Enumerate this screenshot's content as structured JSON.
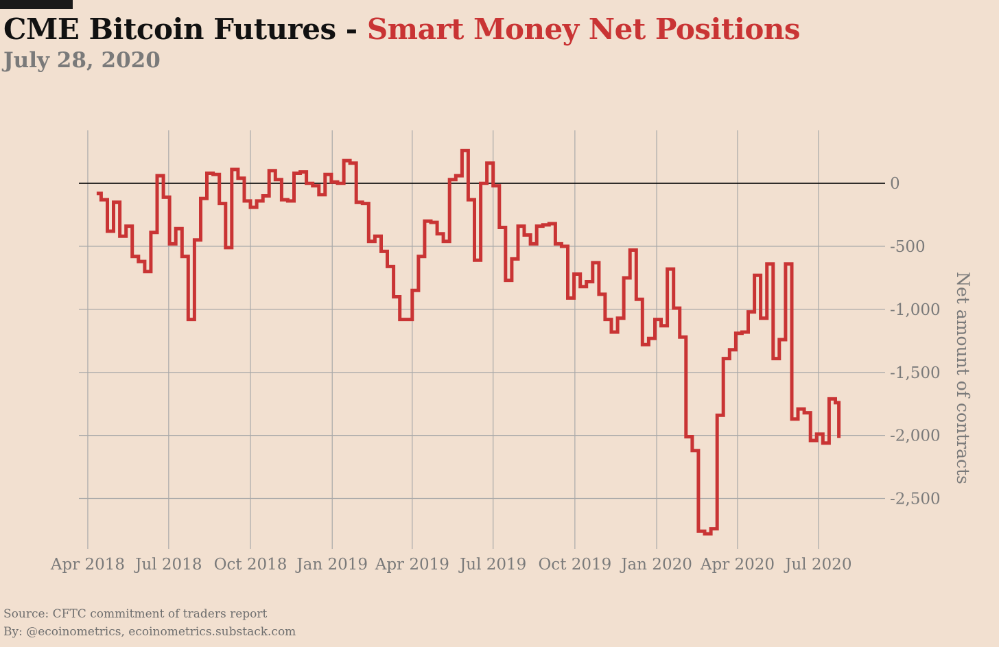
{
  "header": {
    "title_main": "CME Bitcoin Futures - ",
    "title_highlight": "Smart Money Net Positions",
    "date": "July 28, 2020"
  },
  "footer": {
    "source": "Source: CFTC commitment of traders report",
    "byline": "By: @ecoinometrics, ecoinometrics.substack.com"
  },
  "colors": {
    "background": "#f2e0d0",
    "line": "#c93434",
    "grid": "#a9a9a9",
    "zero_line": "#111111",
    "text_muted": "#7a7a7a"
  },
  "chart_data": {
    "type": "line",
    "step": true,
    "title": "CME Bitcoin Futures - Smart Money Net Positions",
    "subtitle": "July 28, 2020",
    "ylabel": "Net amount of contracts",
    "xlabel": "",
    "xlim": [
      "2018-03-22",
      "2020-09-14"
    ],
    "ylim": [
      -2900,
      420
    ],
    "y_axis_side": "right",
    "grid": true,
    "x_ticks": [
      {
        "date": "2018-04-01",
        "label": "Apr 2018"
      },
      {
        "date": "2018-07-01",
        "label": "Jul 2018"
      },
      {
        "date": "2018-10-01",
        "label": "Oct 2018"
      },
      {
        "date": "2019-01-01",
        "label": "Jan 2019"
      },
      {
        "date": "2019-04-01",
        "label": "Apr 2019"
      },
      {
        "date": "2019-07-01",
        "label": "Jul 2019"
      },
      {
        "date": "2019-10-01",
        "label": "Oct 2019"
      },
      {
        "date": "2020-01-01",
        "label": "Jan 2020"
      },
      {
        "date": "2020-04-01",
        "label": "Apr 2020"
      },
      {
        "date": "2020-07-01",
        "label": "Jul 2020"
      }
    ],
    "y_ticks": [
      {
        "value": 0,
        "label": "0"
      },
      {
        "value": -500,
        "label": "-500"
      },
      {
        "value": -1000,
        "label": "-1,000"
      },
      {
        "value": -1500,
        "label": "-1,500"
      },
      {
        "value": -2000,
        "label": "-2,000"
      },
      {
        "value": -2500,
        "label": "-2,500"
      }
    ],
    "series": [
      {
        "color": "#c93434",
        "points": [
          [
            "2018-04-11",
            -80
          ],
          [
            "2018-04-16",
            -130
          ],
          [
            "2018-04-23",
            -380
          ],
          [
            "2018-04-30",
            -150
          ],
          [
            "2018-05-07",
            -420
          ],
          [
            "2018-05-14",
            -340
          ],
          [
            "2018-05-21",
            -580
          ],
          [
            "2018-05-28",
            -620
          ],
          [
            "2018-06-04",
            -700
          ],
          [
            "2018-06-11",
            -390
          ],
          [
            "2018-06-18",
            60
          ],
          [
            "2018-06-25",
            -110
          ],
          [
            "2018-07-02",
            -480
          ],
          [
            "2018-07-09",
            -360
          ],
          [
            "2018-07-16",
            -580
          ],
          [
            "2018-07-23",
            -1080
          ],
          [
            "2018-07-30",
            -450
          ],
          [
            "2018-08-06",
            -120
          ],
          [
            "2018-08-13",
            80
          ],
          [
            "2018-08-20",
            70
          ],
          [
            "2018-08-27",
            -160
          ],
          [
            "2018-09-03",
            -510
          ],
          [
            "2018-09-10",
            110
          ],
          [
            "2018-09-17",
            40
          ],
          [
            "2018-09-24",
            -140
          ],
          [
            "2018-10-01",
            -190
          ],
          [
            "2018-10-08",
            -140
          ],
          [
            "2018-10-15",
            -100
          ],
          [
            "2018-10-22",
            100
          ],
          [
            "2018-10-29",
            30
          ],
          [
            "2018-11-05",
            -130
          ],
          [
            "2018-11-12",
            -140
          ],
          [
            "2018-11-19",
            80
          ],
          [
            "2018-11-26",
            90
          ],
          [
            "2018-12-03",
            0
          ],
          [
            "2018-12-10",
            -20
          ],
          [
            "2018-12-17",
            -90
          ],
          [
            "2018-12-24",
            70
          ],
          [
            "2018-12-31",
            10
          ],
          [
            "2019-01-07",
            0
          ],
          [
            "2019-01-14",
            180
          ],
          [
            "2019-01-21",
            160
          ],
          [
            "2019-01-28",
            -150
          ],
          [
            "2019-02-04",
            -160
          ],
          [
            "2019-02-11",
            -460
          ],
          [
            "2019-02-18",
            -420
          ],
          [
            "2019-02-25",
            -540
          ],
          [
            "2019-03-04",
            -660
          ],
          [
            "2019-03-11",
            -900
          ],
          [
            "2019-03-18",
            -1080
          ],
          [
            "2019-03-25",
            -1080
          ],
          [
            "2019-04-01",
            -850
          ],
          [
            "2019-04-08",
            -580
          ],
          [
            "2019-04-15",
            -300
          ],
          [
            "2019-04-22",
            -310
          ],
          [
            "2019-04-29",
            -400
          ],
          [
            "2019-05-06",
            -460
          ],
          [
            "2019-05-13",
            30
          ],
          [
            "2019-05-20",
            60
          ],
          [
            "2019-05-27",
            260
          ],
          [
            "2019-06-03",
            -130
          ],
          [
            "2019-06-10",
            -610
          ],
          [
            "2019-06-17",
            0
          ],
          [
            "2019-06-24",
            160
          ],
          [
            "2019-07-01",
            -20
          ],
          [
            "2019-07-08",
            -350
          ],
          [
            "2019-07-15",
            -770
          ],
          [
            "2019-07-22",
            -600
          ],
          [
            "2019-07-29",
            -340
          ],
          [
            "2019-08-05",
            -410
          ],
          [
            "2019-08-12",
            -480
          ],
          [
            "2019-08-19",
            -340
          ],
          [
            "2019-08-26",
            -330
          ],
          [
            "2019-09-02",
            -320
          ],
          [
            "2019-09-09",
            -480
          ],
          [
            "2019-09-16",
            -500
          ],
          [
            "2019-09-23",
            -910
          ],
          [
            "2019-09-30",
            -720
          ],
          [
            "2019-10-07",
            -820
          ],
          [
            "2019-10-14",
            -780
          ],
          [
            "2019-10-21",
            -630
          ],
          [
            "2019-10-28",
            -880
          ],
          [
            "2019-11-04",
            -1080
          ],
          [
            "2019-11-11",
            -1180
          ],
          [
            "2019-11-18",
            -1070
          ],
          [
            "2019-11-25",
            -750
          ],
          [
            "2019-12-02",
            -530
          ],
          [
            "2019-12-09",
            -920
          ],
          [
            "2019-12-16",
            -1280
          ],
          [
            "2019-12-23",
            -1230
          ],
          [
            "2019-12-30",
            -1080
          ],
          [
            "2020-01-06",
            -1130
          ],
          [
            "2020-01-13",
            -680
          ],
          [
            "2020-01-20",
            -990
          ],
          [
            "2020-01-27",
            -1220
          ],
          [
            "2020-02-03",
            -2010
          ],
          [
            "2020-02-10",
            -2120
          ],
          [
            "2020-02-17",
            -2760
          ],
          [
            "2020-02-24",
            -2780
          ],
          [
            "2020-03-02",
            -2740
          ],
          [
            "2020-03-09",
            -1840
          ],
          [
            "2020-03-16",
            -1390
          ],
          [
            "2020-03-23",
            -1320
          ],
          [
            "2020-03-30",
            -1190
          ],
          [
            "2020-04-06",
            -1180
          ],
          [
            "2020-04-13",
            -1020
          ],
          [
            "2020-04-20",
            -730
          ],
          [
            "2020-04-27",
            -1070
          ],
          [
            "2020-05-04",
            -640
          ],
          [
            "2020-05-11",
            -1390
          ],
          [
            "2020-05-18",
            -1240
          ],
          [
            "2020-05-25",
            -640
          ],
          [
            "2020-06-01",
            -1870
          ],
          [
            "2020-06-08",
            -1790
          ],
          [
            "2020-06-15",
            -1820
          ],
          [
            "2020-06-22",
            -2040
          ],
          [
            "2020-06-29",
            -1990
          ],
          [
            "2020-07-06",
            -2060
          ],
          [
            "2020-07-13",
            -1710
          ],
          [
            "2020-07-20",
            -1740
          ],
          [
            "2020-07-24",
            -2020
          ]
        ]
      }
    ]
  }
}
